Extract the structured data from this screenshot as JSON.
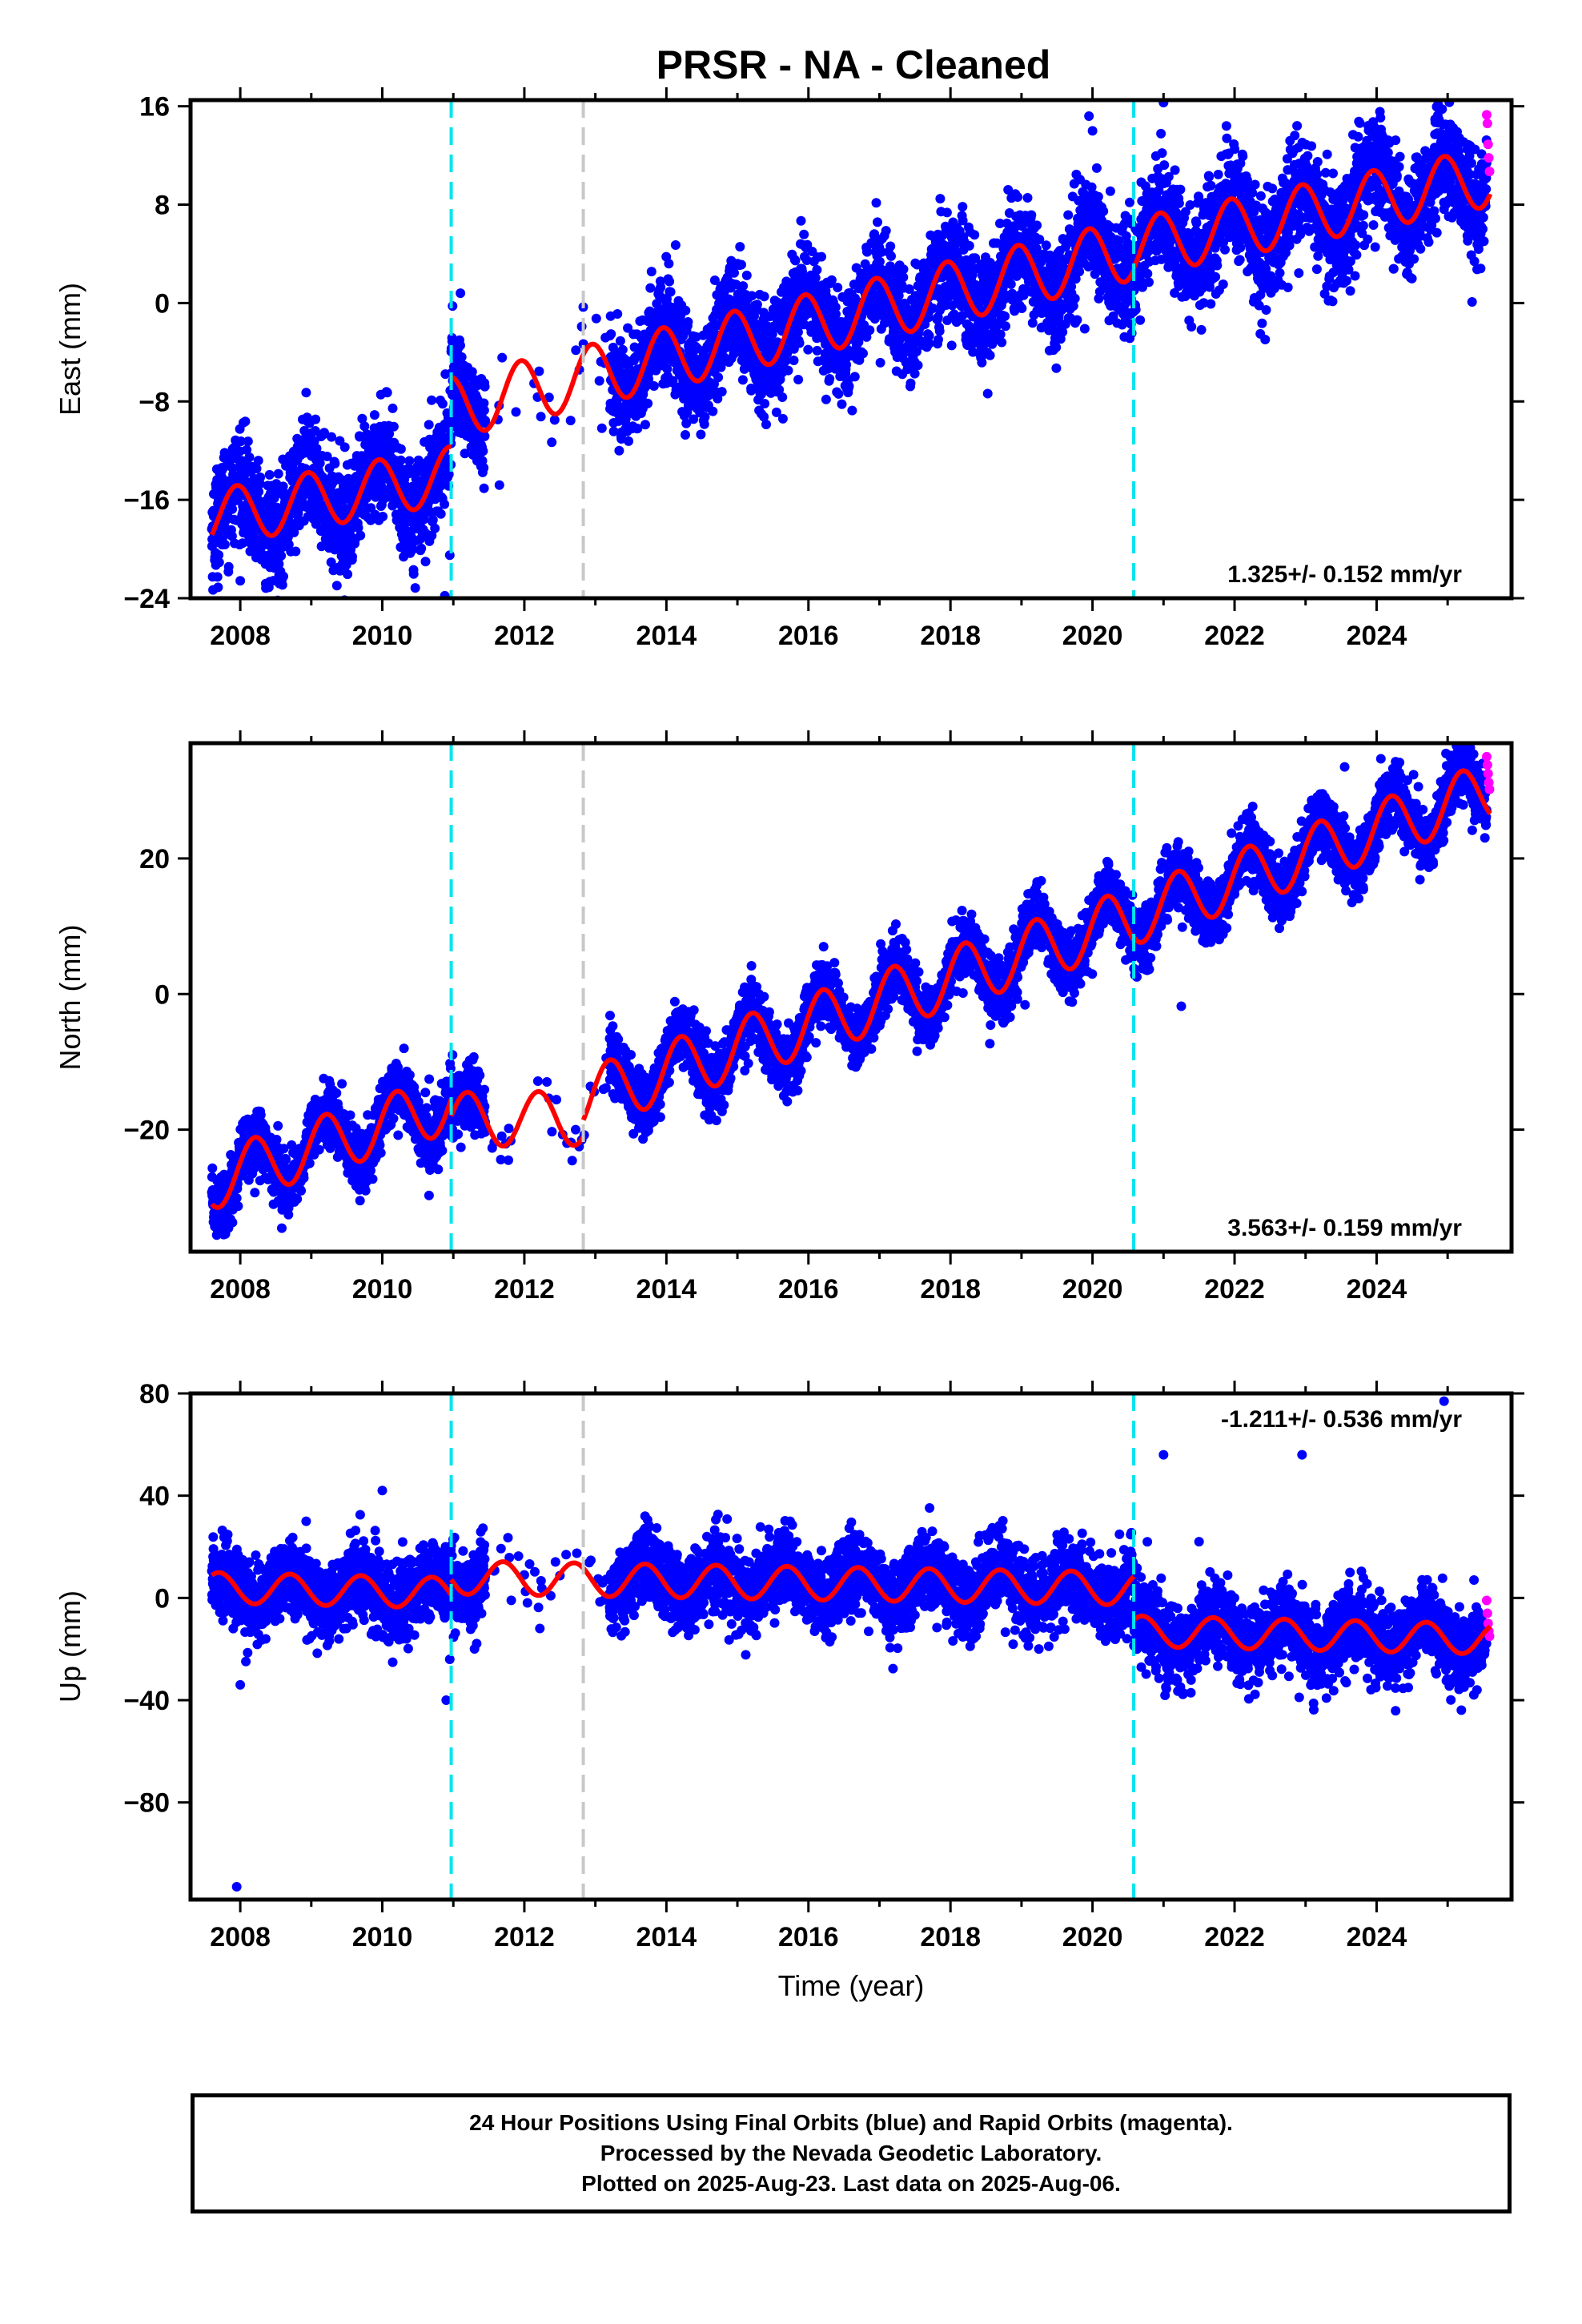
{
  "title": "PRSR  - NA - Cleaned",
  "colors": {
    "final_orbits": "#0000ff",
    "rapid_orbits": "#ff00ff",
    "model": "#ff0000",
    "equipment_change": "#00e5ee",
    "other_offset": "#c8c8c8"
  },
  "chart_data": [
    {
      "type": "scatter",
      "name": "east",
      "ylabel": "East (mm)",
      "xlabel": "",
      "xlim": [
        2007.3,
        2025.9
      ],
      "ylim": [
        -24,
        16.5
      ],
      "yticks": [
        -24,
        -16,
        -8,
        0,
        8,
        16
      ],
      "ytick_labels": [
        "−24",
        "−16",
        "−8",
        "0",
        "8",
        "16"
      ],
      "xticks": [
        2008,
        2010,
        2012,
        2014,
        2016,
        2018,
        2020,
        2022,
        2024
      ],
      "xtick_labels": [
        "2008",
        "2010",
        "2012",
        "2014",
        "2016",
        "2018",
        "2020",
        "2022",
        "2024"
      ],
      "rate_label": "1.325+/- 0.152 mm/yr",
      "rate_position": "bottom-right",
      "offsets_cyan": [
        2010.97,
        2020.58
      ],
      "offsets_gray": [
        2012.83
      ],
      "model": {
        "segments": [
          {
            "x0": 2007.6,
            "x1": 2010.97,
            "base": -17.5,
            "slope": 1.05,
            "amp": 2.3
          },
          {
            "x0": 2010.97,
            "x1": 2020.58,
            "base": -8.5,
            "slope": 1.34,
            "amp": 2.5
          },
          {
            "x0": 2020.58,
            "x1": 2025.6,
            "base": 4.5,
            "slope": 1.15,
            "amp": 2.4
          }
        ],
        "period": 1.0,
        "phase": 0.3
      },
      "final_series": {
        "x_start": 2007.6,
        "x_end": 2025.55,
        "spread": 2.2
      },
      "rapid_points": {
        "x": [
          2025.55,
          2025.56,
          2025.57,
          2025.58,
          2025.59
        ],
        "y": [
          15.3,
          14.6,
          12.9,
          11.8,
          10.7
        ]
      },
      "outliers": {
        "x": [
          2010.88,
          2010.95,
          2011.1,
          2019.95,
          2020.0,
          2021.0
        ],
        "y": [
          -23.8,
          -20.5,
          0.8,
          15.2,
          14.0,
          16.3
        ]
      }
    },
    {
      "type": "scatter",
      "name": "north",
      "ylabel": "North (mm)",
      "xlabel": "",
      "xlim": [
        2007.3,
        2025.9
      ],
      "ylim": [
        -38,
        37
      ],
      "yticks": [
        -20,
        0,
        20
      ],
      "ytick_labels": [
        "−20",
        "0",
        "20"
      ],
      "xticks": [
        2008,
        2010,
        2012,
        2014,
        2016,
        2018,
        2020,
        2022,
        2024
      ],
      "xtick_labels": [
        "2008",
        "2010",
        "2012",
        "2014",
        "2016",
        "2018",
        "2020",
        "2022",
        "2024"
      ],
      "rate_label": "3.563+/- 0.159 mm/yr",
      "rate_position": "bottom-right",
      "offsets_cyan": [
        2010.97,
        2020.58
      ],
      "offsets_gray": [
        2012.83
      ],
      "model": {
        "segments": [
          {
            "x0": 2007.6,
            "x1": 2010.97,
            "base": -27.5,
            "slope": 3.4,
            "amp": 4.3
          },
          {
            "x0": 2010.97,
            "x1": 2012.83,
            "base": -18.5,
            "slope": 0.1,
            "amp": 4.0
          },
          {
            "x0": 2012.83,
            "x1": 2020.58,
            "base": -15.5,
            "slope": 3.45,
            "amp": 4.5
          },
          {
            "x0": 2020.58,
            "x1": 2025.6,
            "base": 11.5,
            "slope": 3.7,
            "amp": 4.3
          }
        ],
        "period": 1.0,
        "phase": 0.05
      },
      "final_series": {
        "x_start": 2007.6,
        "x_end": 2025.55,
        "spread": 2.3
      },
      "rapid_points": {
        "x": [
          2025.55,
          2025.56,
          2025.57,
          2025.58,
          2025.59
        ],
        "y": [
          35.0,
          33.8,
          32.5,
          31.2,
          30.2
        ]
      },
      "outliers": {
        "x": [
          2023.55,
          2021.25,
          2012.6
        ],
        "y": [
          33.5,
          -1.8,
          -22.0
        ]
      }
    },
    {
      "type": "scatter",
      "name": "up",
      "ylabel": "Up (mm)",
      "xlabel": "Time (year)",
      "xlim": [
        2007.3,
        2025.9
      ],
      "ylim": [
        -118,
        80
      ],
      "yticks": [
        -80,
        -40,
        0,
        40,
        80
      ],
      "ytick_labels": [
        "−80",
        "−40",
        "0",
        "40",
        "80"
      ],
      "xticks": [
        2008,
        2010,
        2012,
        2014,
        2016,
        2018,
        2020,
        2022,
        2024
      ],
      "xtick_labels": [
        "2008",
        "2010",
        "2012",
        "2014",
        "2016",
        "2018",
        "2020",
        "2022",
        "2024"
      ],
      "rate_label": "-1.211+/- 0.536 mm/yr",
      "rate_position": "top-right",
      "offsets_cyan": [
        2010.97,
        2020.58
      ],
      "offsets_gray": [
        2012.83
      ],
      "model": {
        "segments": [
          {
            "x0": 2007.6,
            "x1": 2010.97,
            "base": 4.0,
            "slope": -0.6,
            "amp": 6.0
          },
          {
            "x0": 2010.97,
            "x1": 2020.58,
            "base": 8.0,
            "slope": -0.45,
            "amp": 6.5
          },
          {
            "x0": 2020.58,
            "x1": 2025.6,
            "base": -13.0,
            "slope": -0.6,
            "amp": 6.0
          }
        ],
        "period": 1.0,
        "phase": 0.55
      },
      "final_series": {
        "x_start": 2007.6,
        "x_end": 2025.55,
        "spread": 7.5
      },
      "rapid_points": {
        "x": [
          2025.55,
          2025.56,
          2025.57,
          2025.58,
          2025.59
        ],
        "y": [
          -1.0,
          -6.0,
          -10.0,
          -13.0,
          -15.0
        ]
      },
      "outliers": {
        "x": [
          2007.95,
          2008.0,
          2010.0,
          2010.9,
          2010.95,
          2021.0,
          2022.95,
          2024.95,
          2021.5,
          2013.7
        ],
        "y": [
          -113.0,
          -34.0,
          42.0,
          -40.0,
          -24.0,
          56.0,
          56.0,
          77.0,
          22.0,
          32.0
        ]
      }
    }
  ],
  "footer": {
    "line1": "24 Hour Positions Using Final Orbits (blue) and Rapid Orbits (magenta).",
    "line2": "Processed by the Nevada Geodetic Laboratory.",
    "line3": "Plotted on 2025-Aug-23. Last data on 2025-Aug-06."
  }
}
